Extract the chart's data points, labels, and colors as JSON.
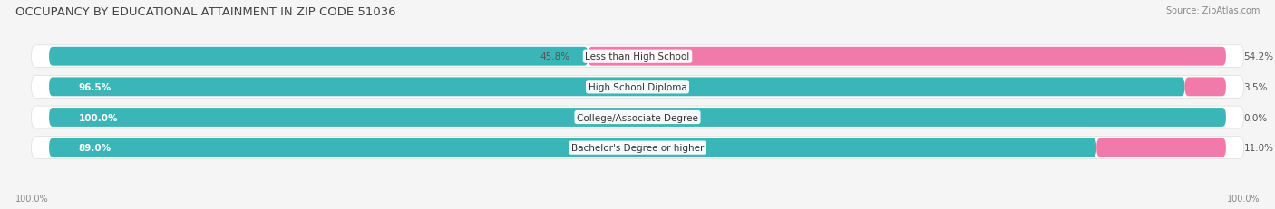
{
  "title": "OCCUPANCY BY EDUCATIONAL ATTAINMENT IN ZIP CODE 51036",
  "source": "Source: ZipAtlas.com",
  "categories": [
    "Less than High School",
    "High School Diploma",
    "College/Associate Degree",
    "Bachelor's Degree or higher"
  ],
  "owner_pct": [
    45.8,
    96.5,
    100.0,
    89.0
  ],
  "renter_pct": [
    54.2,
    3.5,
    0.0,
    11.0
  ],
  "owner_color": "#3ab5b8",
  "renter_color": "#f07aaa",
  "bg_color": "#f5f5f5",
  "bar_bg_color": "#e8e8e8",
  "row_bg_color": "#ffffff",
  "axis_label_left": "100.0%",
  "axis_label_right": "100.0%",
  "label_outside_color": "#555555",
  "label_inside_color": "#ffffff"
}
